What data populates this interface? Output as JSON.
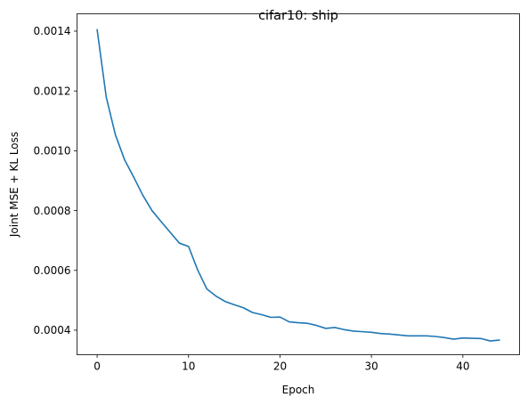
{
  "chart_data": {
    "type": "line",
    "title": "cifar10: ship",
    "xlabel": "Epoch",
    "ylabel": "Joint MSE + KL Loss",
    "xlim": [
      -2.2,
      46.2
    ],
    "ylim": [
      0.000318,
      0.001458
    ],
    "xticks": [
      0,
      10,
      20,
      30,
      40
    ],
    "xtick_labels": [
      "0",
      "10",
      "20",
      "30",
      "40"
    ],
    "yticks": [
      0.0004,
      0.0006,
      0.0008,
      0.001,
      0.0012,
      0.0014
    ],
    "ytick_labels": [
      "0.0004",
      "0.0006",
      "0.0008",
      "0.0010",
      "0.0012",
      "0.0014"
    ],
    "grid": false,
    "series": [
      {
        "color": "#1f77b4",
        "x": [
          0,
          1,
          2,
          3,
          4,
          5,
          6,
          7,
          8,
          9,
          10,
          11,
          12,
          13,
          14,
          15,
          16,
          17,
          18,
          19,
          20,
          21,
          22,
          23,
          24,
          25,
          26,
          27,
          28,
          29,
          30,
          31,
          32,
          33,
          34,
          35,
          36,
          37,
          38,
          39,
          40,
          41,
          42,
          43,
          44
        ],
        "values": [
          0.001405,
          0.001179,
          0.001053,
          0.00097,
          0.000912,
          0.000851,
          0.0008,
          0.000763,
          0.000727,
          0.000691,
          0.00068,
          0.000601,
          0.000538,
          0.000514,
          0.000496,
          0.000485,
          0.000475,
          0.000459,
          0.000452,
          0.000443,
          0.000444,
          0.000428,
          0.000425,
          0.000423,
          0.000416,
          0.000406,
          0.000409,
          0.000402,
          0.000397,
          0.000395,
          0.000393,
          0.000389,
          0.000387,
          0.000384,
          0.000381,
          0.000381,
          0.000381,
          0.000379,
          0.000375,
          0.00037,
          0.000374,
          0.000373,
          0.000372,
          0.000364,
          0.000367
        ]
      }
    ]
  }
}
